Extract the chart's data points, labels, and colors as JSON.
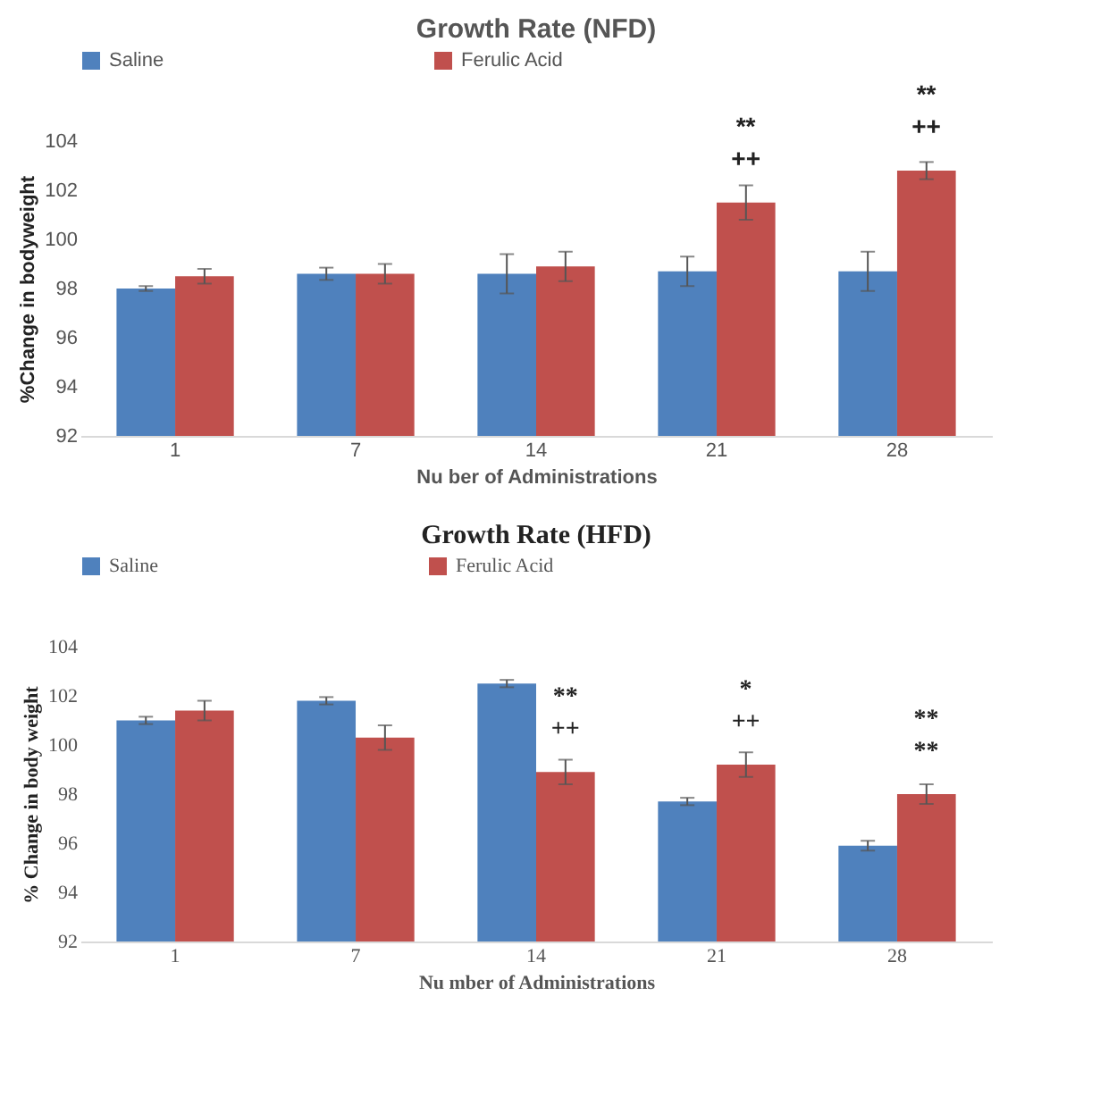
{
  "chart_data": [
    {
      "type": "bar",
      "title": "Growth Rate (NFD)",
      "xlabel": "Nu ber of Administrations",
      "ylabel": "%Change in bodyweight",
      "categories": [
        "1",
        "7",
        "14",
        "21",
        "28"
      ],
      "series": [
        {
          "name": "Saline",
          "color": "#4f81bd",
          "values": [
            98.0,
            98.6,
            98.6,
            98.7,
            98.7
          ],
          "errors": [
            0.1,
            0.25,
            0.8,
            0.6,
            0.8
          ]
        },
        {
          "name": "Ferulic Acid",
          "color": "#c0504d",
          "values": [
            98.5,
            98.6,
            98.9,
            101.5,
            102.8
          ],
          "errors": [
            0.3,
            0.4,
            0.6,
            0.7,
            0.35
          ]
        }
      ],
      "ylim": [
        92,
        104
      ],
      "yticks": [
        92,
        94,
        96,
        98,
        100,
        102,
        104
      ],
      "grid": false,
      "legend": "top",
      "annotations": [
        {
          "text": "**",
          "x": "21",
          "y": 101.5
        },
        {
          "text": "++",
          "x": "21",
          "y": 101.5
        },
        {
          "text": "**",
          "x": "28",
          "y": 102.8
        },
        {
          "text": "++",
          "x": "28",
          "y": 102.8
        }
      ]
    },
    {
      "type": "bar",
      "title": "Growth Rate (HFD)",
      "xlabel": "Nu mber of Administrations",
      "ylabel": "% Change in body weight",
      "categories": [
        "1",
        "7",
        "14",
        "21",
        "28"
      ],
      "series": [
        {
          "name": "Saline",
          "color": "#4f81bd",
          "values": [
            101.0,
            101.8,
            102.5,
            97.7,
            95.9
          ],
          "errors": [
            0.15,
            0.15,
            0.15,
            0.15,
            0.2
          ]
        },
        {
          "name": "Ferulic Acid",
          "color": "#c0504d",
          "values": [
            101.4,
            100.3,
            98.9,
            99.2,
            98.0
          ],
          "errors": [
            0.4,
            0.5,
            0.5,
            0.5,
            0.4
          ]
        }
      ],
      "ylim": [
        92,
        104
      ],
      "yticks": [
        92,
        94,
        96,
        98,
        100,
        102,
        104
      ],
      "grid": false,
      "legend": "top",
      "annotations": [
        {
          "text": "**",
          "x": "14",
          "y": 98.9
        },
        {
          "text": "++",
          "x": "14",
          "y": 98.9
        },
        {
          "text": "*",
          "x": "21",
          "y": 99.2
        },
        {
          "text": "++",
          "x": "21",
          "y": 99.2
        },
        {
          "text": "**",
          "x": "28",
          "y": 98.0
        },
        {
          "text": "**",
          "x": "28",
          "y": 98.0
        }
      ]
    }
  ]
}
